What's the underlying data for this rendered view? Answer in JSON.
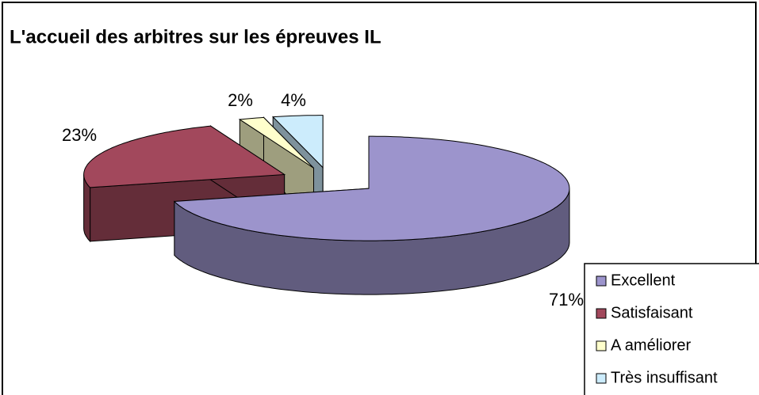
{
  "chart_data": {
    "type": "pie3d",
    "title": "L'accueil des arbitres sur les épreuves IL",
    "categories": [
      "Excellent",
      "Satisfaisant",
      "A améliorer",
      "Très insuffisant"
    ],
    "values": [
      71,
      23,
      2,
      4
    ],
    "value_labels": [
      "71%",
      "23%",
      "2%",
      "4%"
    ],
    "colors": [
      "#9c94cc",
      "#a2485c",
      "#ffffcc",
      "#ccecfc"
    ],
    "legend": "bottom-right"
  }
}
